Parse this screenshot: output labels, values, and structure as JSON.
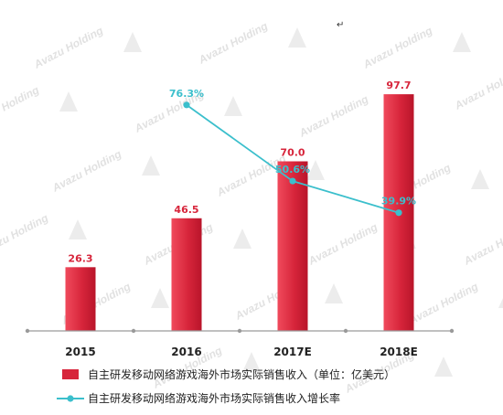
{
  "corner_mark": "↵",
  "watermark": {
    "text": "Avazu Holding",
    "color": "#c9c9c9"
  },
  "colors": {
    "bar": "#d7253b",
    "bar_light": "#f04a5c",
    "bar_dark": "#b9152a",
    "bar_label": "#d7253b",
    "line": "#3bbfcc",
    "line_label": "#3bbfcc",
    "axis": "#9a9a9a",
    "tick_text": "#222222",
    "legend_text": "#222222"
  },
  "chart_data": {
    "type": "bar",
    "categories": [
      "2015",
      "2016",
      "2017E",
      "2018E"
    ],
    "series": [
      {
        "name": "自主研发移动网络游戏海外市场实际销售收入（单位：亿美元）",
        "kind": "bar",
        "values": [
          26.3,
          46.5,
          70.0,
          97.7
        ],
        "labels": [
          "26.3",
          "46.5",
          "70.0",
          "97.7"
        ]
      },
      {
        "name": "自主研发移动网络游戏海外市场实际销售收入增长率",
        "kind": "line",
        "values": [
          null,
          76.3,
          50.6,
          39.9
        ],
        "labels": [
          "",
          "76.3%",
          "50.6%",
          "39.9%"
        ]
      }
    ],
    "ylim": [
      0,
      100
    ],
    "y2lim": [
      0,
      100
    ],
    "grid": false,
    "legend_position": "bottom"
  }
}
